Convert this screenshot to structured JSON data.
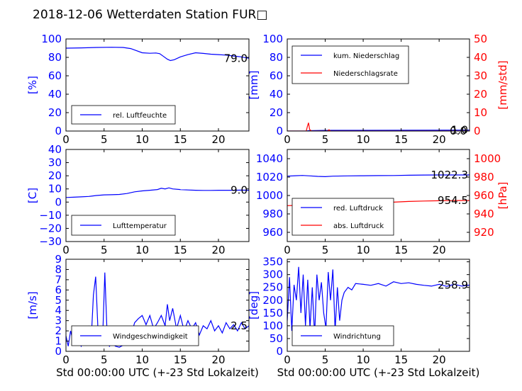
{
  "figure_title": "2018-12-06 Wetterdaten Station FUR□",
  "colors": {
    "blue": "#0000ff",
    "red": "#ff0000",
    "black": "#000000"
  },
  "chart_data": [
    {
      "id": "humidity",
      "type": "line",
      "ylabel": "[%]",
      "xlim": [
        0,
        24
      ],
      "ylim": [
        0,
        100
      ],
      "xticks": [
        0,
        5,
        10,
        15,
        20
      ],
      "yticks": [
        0,
        20,
        40,
        60,
        80,
        100
      ],
      "value_label": "79.0",
      "legend_position": "lower-left",
      "series": [
        {
          "name": "rel. Luftfeuchte",
          "color": "#0000ff",
          "x": [
            0,
            2,
            4,
            6,
            7.5,
            8.5,
            10,
            11,
            11.8,
            12.3,
            12.8,
            13.3,
            13.7,
            14.2,
            15,
            16,
            17,
            18,
            19,
            20,
            21,
            22,
            23,
            24
          ],
          "y": [
            90,
            90.3,
            90.8,
            91,
            90.8,
            89.5,
            85,
            84.5,
            84.8,
            84,
            81,
            78,
            76.5,
            77.5,
            80.5,
            83,
            85,
            84.3,
            83.5,
            83,
            82.5,
            81.5,
            80.5,
            79
          ]
        }
      ]
    },
    {
      "id": "precipitation",
      "type": "line",
      "ylabel": "[mm]",
      "ylabel_right": "[mm/std]",
      "xlim": [
        0,
        24
      ],
      "ylim": [
        0,
        100
      ],
      "ylim_right": [
        0,
        50
      ],
      "xticks": [
        0,
        5,
        10,
        15,
        20
      ],
      "yticks": [
        0,
        20,
        40,
        60,
        80,
        100
      ],
      "yticks_right": [
        0,
        10,
        20,
        30,
        40,
        50
      ],
      "value_label": "1.0",
      "value_label_right": "0.0",
      "legend_position": "upper-left",
      "series": [
        {
          "name": "kum. Niederschlag",
          "color": "#0000ff",
          "axis": "left",
          "x": [
            0,
            2.5,
            2.8,
            5.5,
            24
          ],
          "y": [
            0,
            0,
            0.4,
            0.8,
            1.0
          ]
        },
        {
          "name": "Niederschlagsrate",
          "color": "#ff0000",
          "axis": "right",
          "x": [
            0,
            2.5,
            2.65,
            2.8,
            2.95,
            3.2,
            5.3,
            5.5,
            5.7,
            24
          ],
          "y": [
            0,
            0,
            2.5,
            4.5,
            0.8,
            0,
            0,
            0.7,
            0,
            0
          ]
        }
      ]
    },
    {
      "id": "temperature",
      "type": "line",
      "ylabel": "[C]",
      "xlim": [
        0,
        24
      ],
      "ylim": [
        -30,
        40
      ],
      "xticks": [
        0,
        5,
        10,
        15,
        20
      ],
      "yticks": [
        -30,
        -20,
        -10,
        0,
        10,
        20,
        30,
        40
      ],
      "value_label": "9.0",
      "legend_position": "lower-left",
      "series": [
        {
          "name": "Lufttemperatur",
          "color": "#0000ff",
          "x": [
            0,
            1,
            2,
            3,
            4,
            5,
            6,
            7,
            8,
            9,
            10,
            11,
            12,
            12.5,
            13,
            13.5,
            14,
            15,
            16,
            17,
            18,
            19,
            20,
            21,
            22,
            23,
            24
          ],
          "y": [
            3.5,
            3.7,
            4,
            4.3,
            5,
            5.5,
            5.6,
            5.8,
            6.5,
            7.8,
            8.5,
            9,
            9.5,
            10.5,
            10,
            10.8,
            10,
            9.5,
            9.2,
            9,
            8.9,
            8.9,
            9,
            9,
            9,
            9.1,
            9
          ]
        }
      ]
    },
    {
      "id": "pressure",
      "type": "line",
      "ylabel_right": "[hPa]",
      "xlim": [
        0,
        24
      ],
      "ylim": [
        950,
        1050
      ],
      "ylim_right": [
        910,
        1010
      ],
      "xticks": [
        0,
        5,
        10,
        15,
        20
      ],
      "yticks": [
        960,
        980,
        1000,
        1020,
        1040
      ],
      "yticks_right": [
        920,
        940,
        960,
        980,
        1000
      ],
      "value_label": "1022.3",
      "value_label_right": "954.5",
      "legend_position": "lower-left",
      "series": [
        {
          "name": "red. Luftdruck",
          "color": "#0000ff",
          "axis": "left",
          "x": [
            0,
            1,
            2,
            3,
            4,
            5,
            6,
            8,
            10,
            12,
            14,
            16,
            18,
            20,
            22,
            24
          ],
          "y": [
            1021,
            1021.5,
            1021.8,
            1021.3,
            1020.8,
            1020.5,
            1021,
            1021.3,
            1021.5,
            1021.6,
            1021.7,
            1022,
            1022.2,
            1022.3,
            1022.3,
            1022.3
          ]
        },
        {
          "name": "abs. Luftdruck",
          "color": "#ff0000",
          "axis": "right",
          "x": [
            0,
            1,
            2,
            3,
            4,
            5,
            6,
            8,
            10,
            12,
            14,
            16,
            18,
            20,
            22,
            24
          ],
          "y": [
            949,
            949.2,
            949.8,
            949.3,
            948.8,
            948.5,
            949,
            950,
            951,
            952,
            952.8,
            953.5,
            954,
            954.3,
            954.5,
            954.5
          ]
        }
      ]
    },
    {
      "id": "wind_speed",
      "type": "line",
      "ylabel": "[m/s]",
      "xlabel": "Std 00:00:00 UTC (+-23 Std Lokalzeit)",
      "xlim": [
        0,
        24
      ],
      "ylim": [
        0,
        9
      ],
      "xticks": [
        0,
        5,
        10,
        15,
        20
      ],
      "yticks": [
        0,
        1,
        2,
        3,
        4,
        5,
        6,
        7,
        8,
        9
      ],
      "value_label": "2.5",
      "legend_position": "lower-left",
      "series": [
        {
          "name": "Windgeschwindigkeit",
          "color": "#0000ff",
          "x": [
            0,
            0.3,
            0.6,
            1,
            1.5,
            2,
            2.5,
            3,
            3.3,
            3.6,
            3.9,
            4.2,
            4.5,
            4.8,
            5.1,
            5.4,
            5.7,
            6,
            6.5,
            7,
            7.5,
            8,
            8.5,
            9,
            9.5,
            10,
            10.5,
            11,
            11.5,
            12,
            12.5,
            13,
            13.3,
            13.6,
            14,
            14.5,
            15,
            15.5,
            16,
            16.5,
            17,
            17.5,
            18,
            18.5,
            19,
            19.5,
            20,
            20.5,
            21,
            21.5,
            22,
            22.5,
            23,
            23.5,
            24
          ],
          "y": [
            1.5,
            0.5,
            2.0,
            0.8,
            1.2,
            0.5,
            1.5,
            2.5,
            1.0,
            5.5,
            7.3,
            2.0,
            1.5,
            1.0,
            7.7,
            1.5,
            0.5,
            0.8,
            0.5,
            0.4,
            0.6,
            0.8,
            1.5,
            2.8,
            3.2,
            3.5,
            2.6,
            3.5,
            2.2,
            2.8,
            3.5,
            2.5,
            4.6,
            3.0,
            4.2,
            2.2,
            3.5,
            2.0,
            3.0,
            2.2,
            2.8,
            1.6,
            2.5,
            2.2,
            3.0,
            2.0,
            2.5,
            1.8,
            2.8,
            2.2,
            2.6,
            2.0,
            2.8,
            2.2,
            2.5
          ]
        }
      ]
    },
    {
      "id": "wind_direction",
      "type": "line",
      "ylabel": "[deg]",
      "xlabel": "Std 00:00:00 UTC (+-23 Std Lokalzeit)",
      "xlim": [
        0,
        24
      ],
      "ylim": [
        0,
        360
      ],
      "xticks": [
        0,
        5,
        10,
        15,
        20
      ],
      "yticks": [
        0,
        50,
        100,
        150,
        200,
        250,
        300,
        350
      ],
      "value_label": "258.9",
      "legend_position": "lower-left",
      "series": [
        {
          "name": "Windrichtung",
          "color": "#0000ff",
          "x": [
            0,
            0.3,
            0.6,
            0.9,
            1.2,
            1.5,
            1.8,
            2.1,
            2.4,
            2.7,
            3.0,
            3.3,
            3.6,
            3.9,
            4.2,
            4.5,
            4.8,
            5.1,
            5.4,
            5.7,
            6.0,
            6.3,
            6.6,
            6.9,
            7.2,
            7.5,
            8,
            8.5,
            9,
            10,
            11,
            12,
            13,
            14,
            15,
            16,
            17,
            18,
            19,
            20,
            21,
            22,
            23,
            24
          ],
          "y": [
            120,
            290,
            80,
            260,
            200,
            330,
            150,
            300,
            100,
            280,
            90,
            250,
            60,
            300,
            200,
            270,
            150,
            90,
            310,
            200,
            320,
            80,
            250,
            120,
            200,
            230,
            250,
            240,
            265,
            262,
            258,
            265,
            255,
            272,
            265,
            268,
            262,
            258,
            255,
            262,
            254,
            262,
            255,
            259
          ]
        }
      ]
    }
  ]
}
